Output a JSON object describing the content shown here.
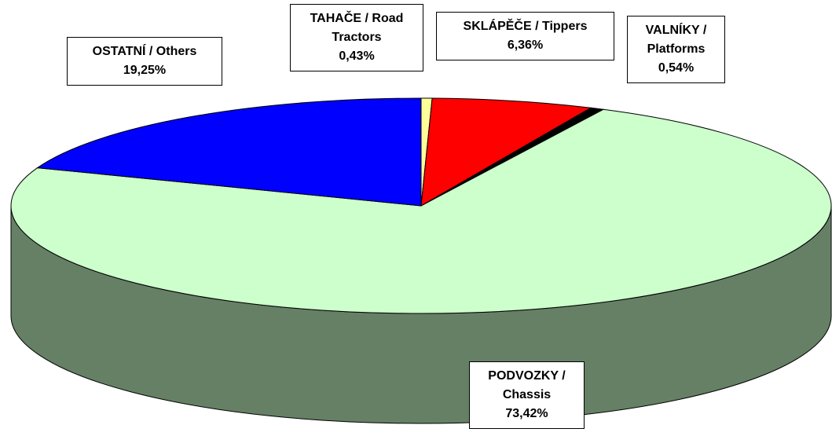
{
  "chart_data": {
    "type": "pie3d",
    "categories": [
      "TAHAČE / Road Tractors",
      "SKLÁPĚČE / Tippers",
      "VALNÍKY / Platforms",
      "PODVOZKY / Chassis",
      "OSTATNÍ / Others"
    ],
    "values": [
      0.43,
      6.36,
      0.54,
      73.42,
      19.25
    ],
    "value_labels": [
      "0,43%",
      "6,36%",
      "0,54%",
      "73,42%",
      "19,25%"
    ],
    "colors": [
      "#ffff99",
      "#ff0000",
      "#000000",
      "#ccffcc",
      "#0000ff"
    ]
  }
}
